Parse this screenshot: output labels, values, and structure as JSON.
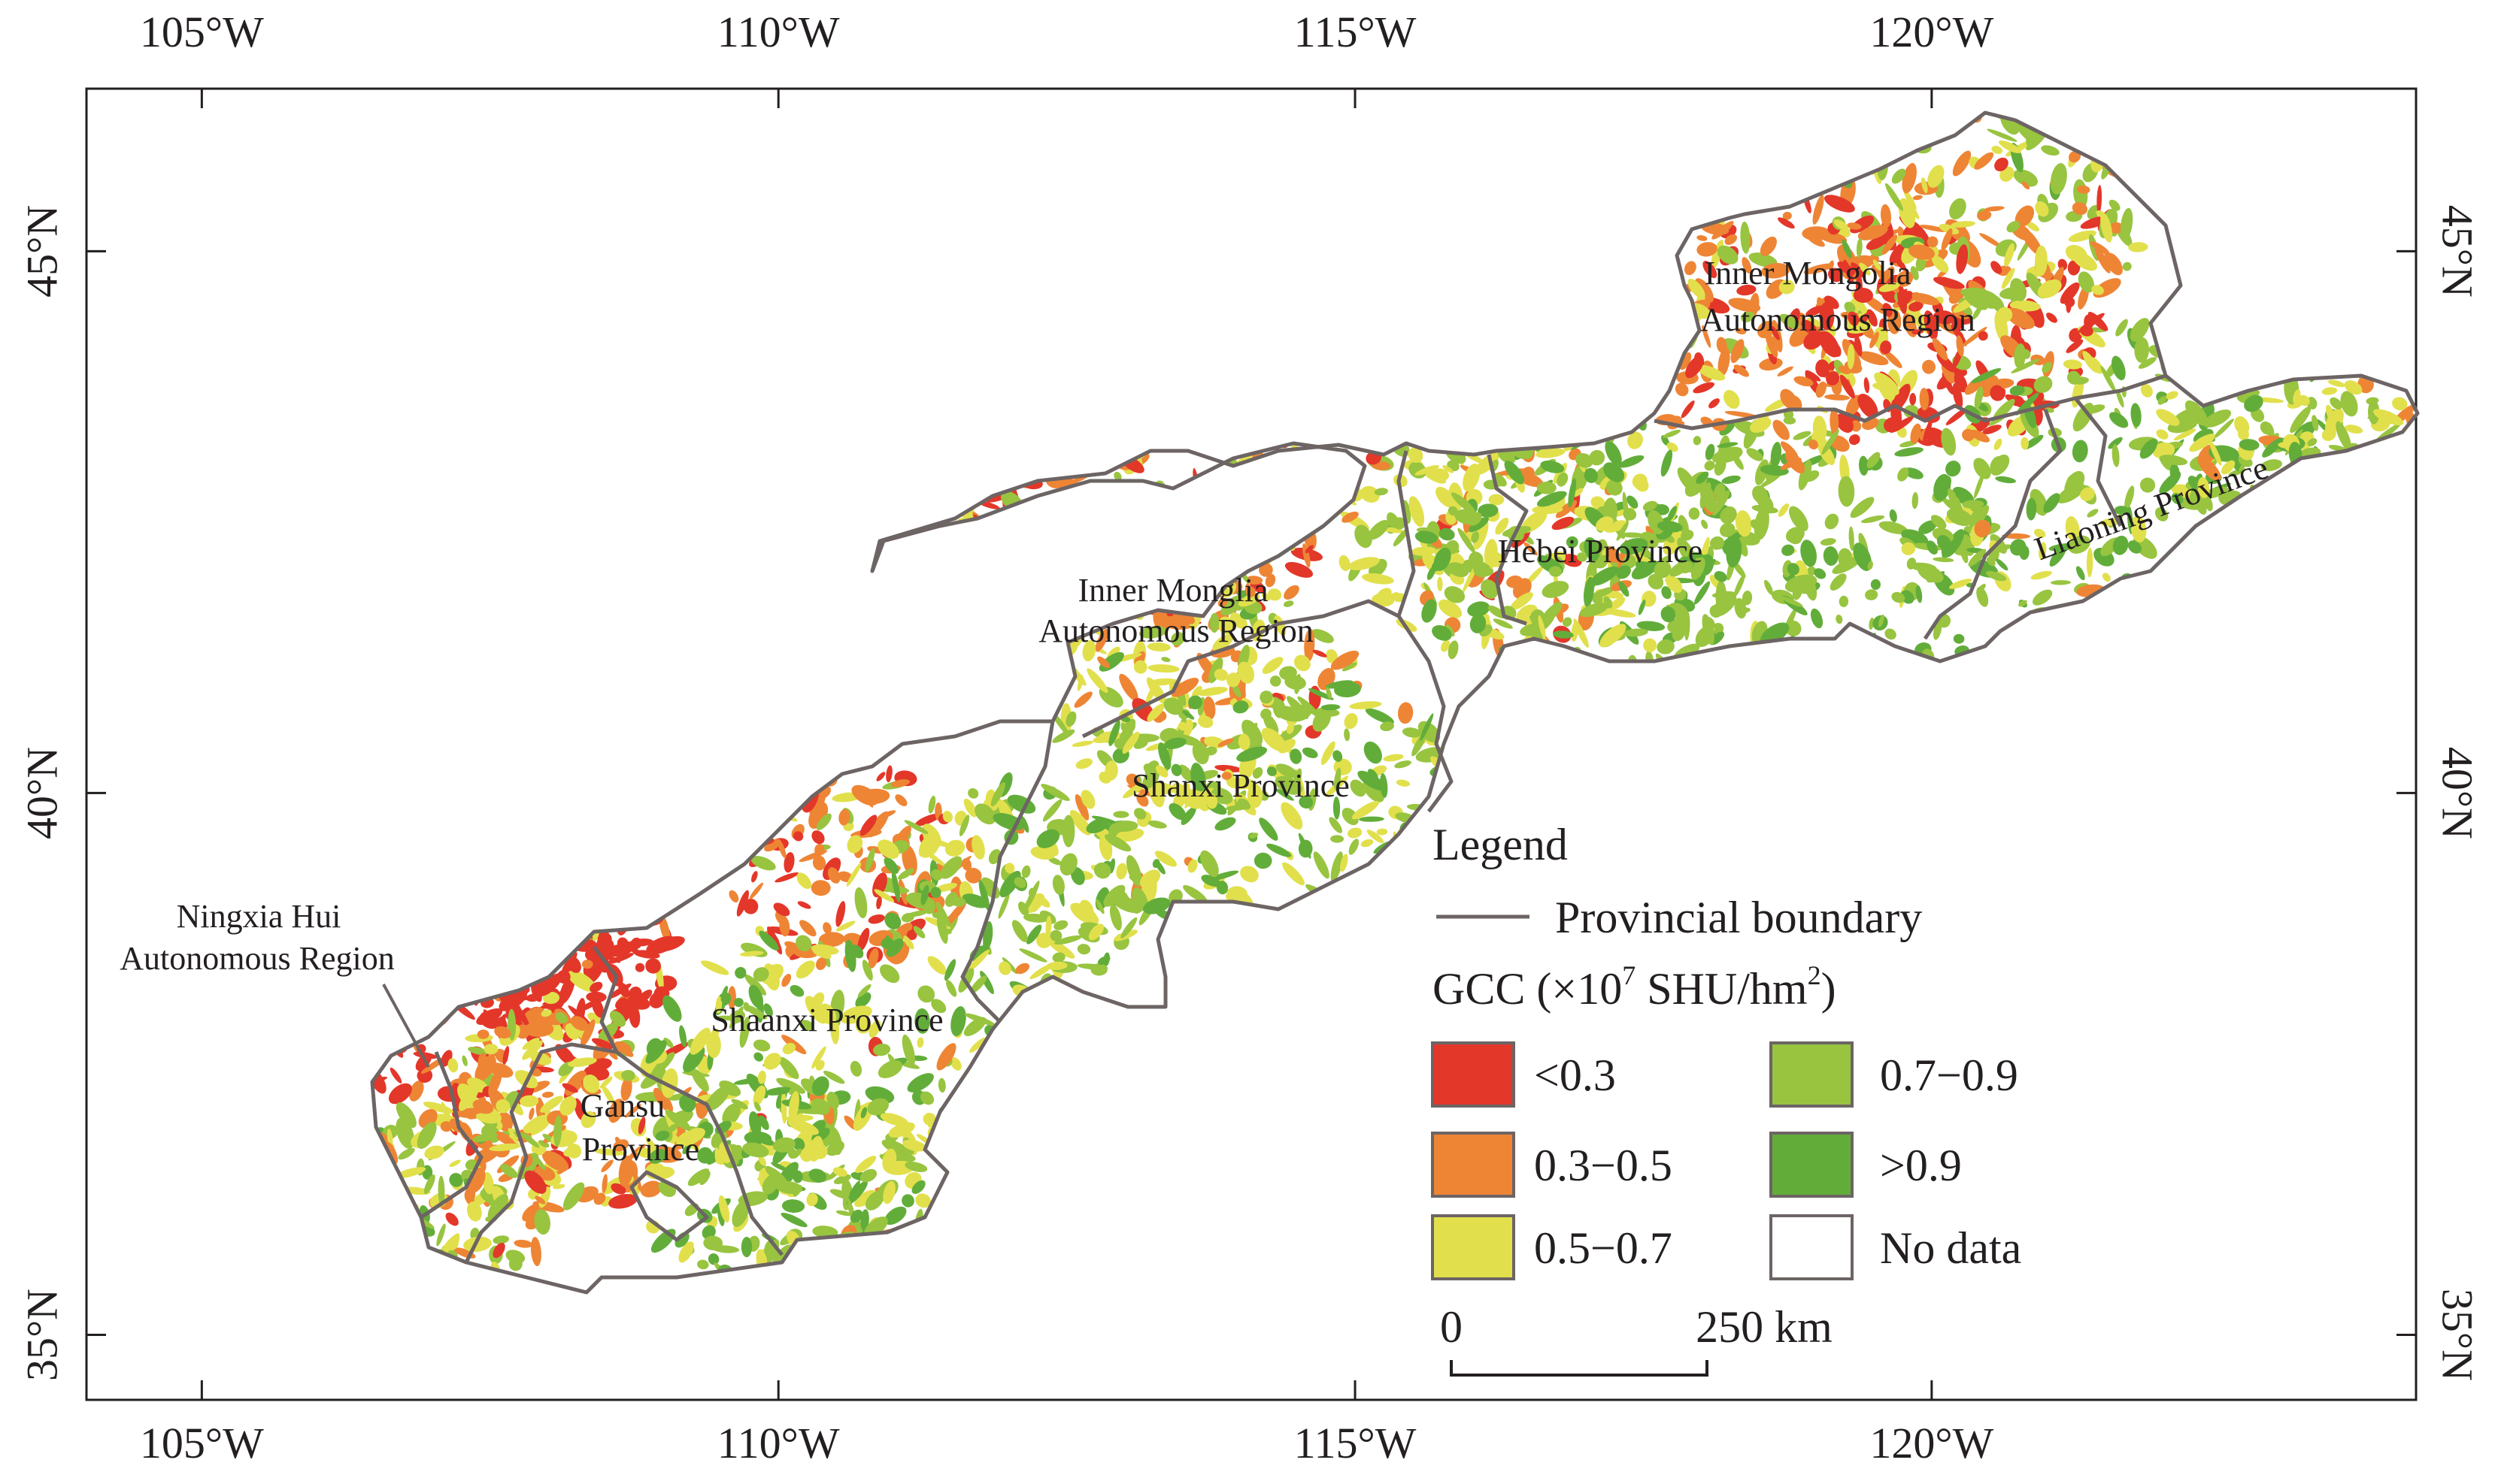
{
  "map": {
    "lon_ticks": [
      {
        "value": 105,
        "label": "105°W"
      },
      {
        "value": 110,
        "label": "110°W"
      },
      {
        "value": 115,
        "label": "115°W"
      },
      {
        "value": 120,
        "label": "120°W"
      }
    ],
    "lat_ticks": [
      {
        "value": 45,
        "label": "45°N"
      },
      {
        "value": 40,
        "label": "40°N"
      },
      {
        "value": 35,
        "label": "35°N"
      }
    ],
    "extent": {
      "lon": [
        104.0,
        124.2
      ],
      "lat": [
        34.4,
        46.5
      ]
    },
    "region_labels": {
      "inner_mongolia_ne": [
        "Inner Mongolia",
        "Autonomous Region"
      ],
      "inner_mongolia_w": [
        "Inner Monglia",
        "Autonomous Region"
      ],
      "hebei": "Hebei Province",
      "liaoning": "Liaoning Province",
      "shanxi": "Shanxi Province",
      "shaanxi": "Shaanxi Province",
      "gansu": [
        "Gansu",
        "Province"
      ],
      "ningxia": [
        "Ningxia Hui",
        "Autonomous Region"
      ]
    },
    "colors": {
      "lt03": "#e3372a",
      "r03_05": "#ee8535",
      "r05_07": "#e1e04c",
      "r07_09": "#98c440",
      "gt09": "#62ad3a",
      "boundary": "#6d6464"
    }
  },
  "legend": {
    "title": "Legend",
    "boundary_label": "Provincial boundary",
    "gcc_title": "GCC (×10",
    "gcc_exp": "7",
    "gcc_unit": " SHU/hm",
    "gcc_unit_exp": "2",
    "gcc_close": ")",
    "classes": [
      {
        "label": "<0.3",
        "color": "#e3372a"
      },
      {
        "label": "0.3−0.5",
        "color": "#ee8535"
      },
      {
        "label": "0.5−0.7",
        "color": "#e1e04c"
      },
      {
        "label": "0.7−0.9",
        "color": "#98c440"
      },
      {
        "label": ">0.9",
        "color": "#62ad3a"
      },
      {
        "label": "No data",
        "color": "#ffffff"
      }
    ]
  },
  "scalebar": {
    "start": "0",
    "end": "250 km"
  }
}
